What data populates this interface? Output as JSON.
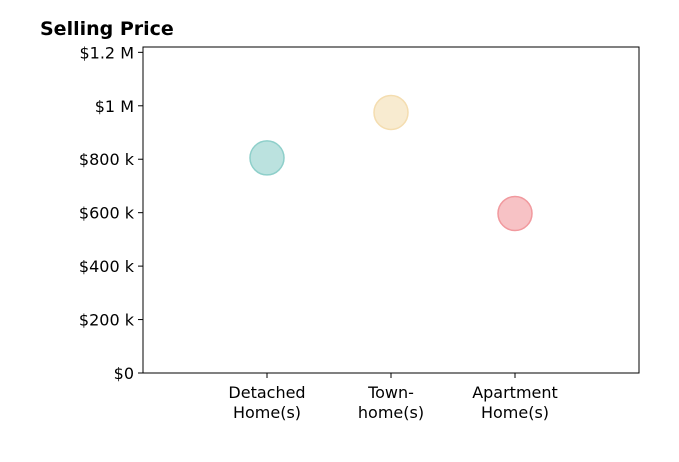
{
  "chart_data": {
    "type": "scatter",
    "title": "Selling Price",
    "xlabel": "",
    "ylabel": "",
    "categories": [
      [
        "Detached",
        "Home(s)"
      ],
      [
        "Town-",
        "home(s)"
      ],
      [
        "Apartment",
        "Home(s)"
      ]
    ],
    "values": [
      805000,
      975000,
      597000
    ],
    "colors": [
      "#8ecfca",
      "#f4ddb0",
      "#f1999e"
    ],
    "ylim": [
      0,
      1220000
    ],
    "yticks": [
      {
        "value": 0,
        "label": "$0"
      },
      {
        "value": 200000,
        "label": "$200 k"
      },
      {
        "value": 400000,
        "label": "$400 k"
      },
      {
        "value": 600000,
        "label": "$600 k"
      },
      {
        "value": 800000,
        "label": "$800 k"
      },
      {
        "value": 1000000,
        "label": "$1 M"
      },
      {
        "value": 1200000,
        "label": "$1.2 M"
      }
    ],
    "grid": false,
    "legend": "none"
  }
}
